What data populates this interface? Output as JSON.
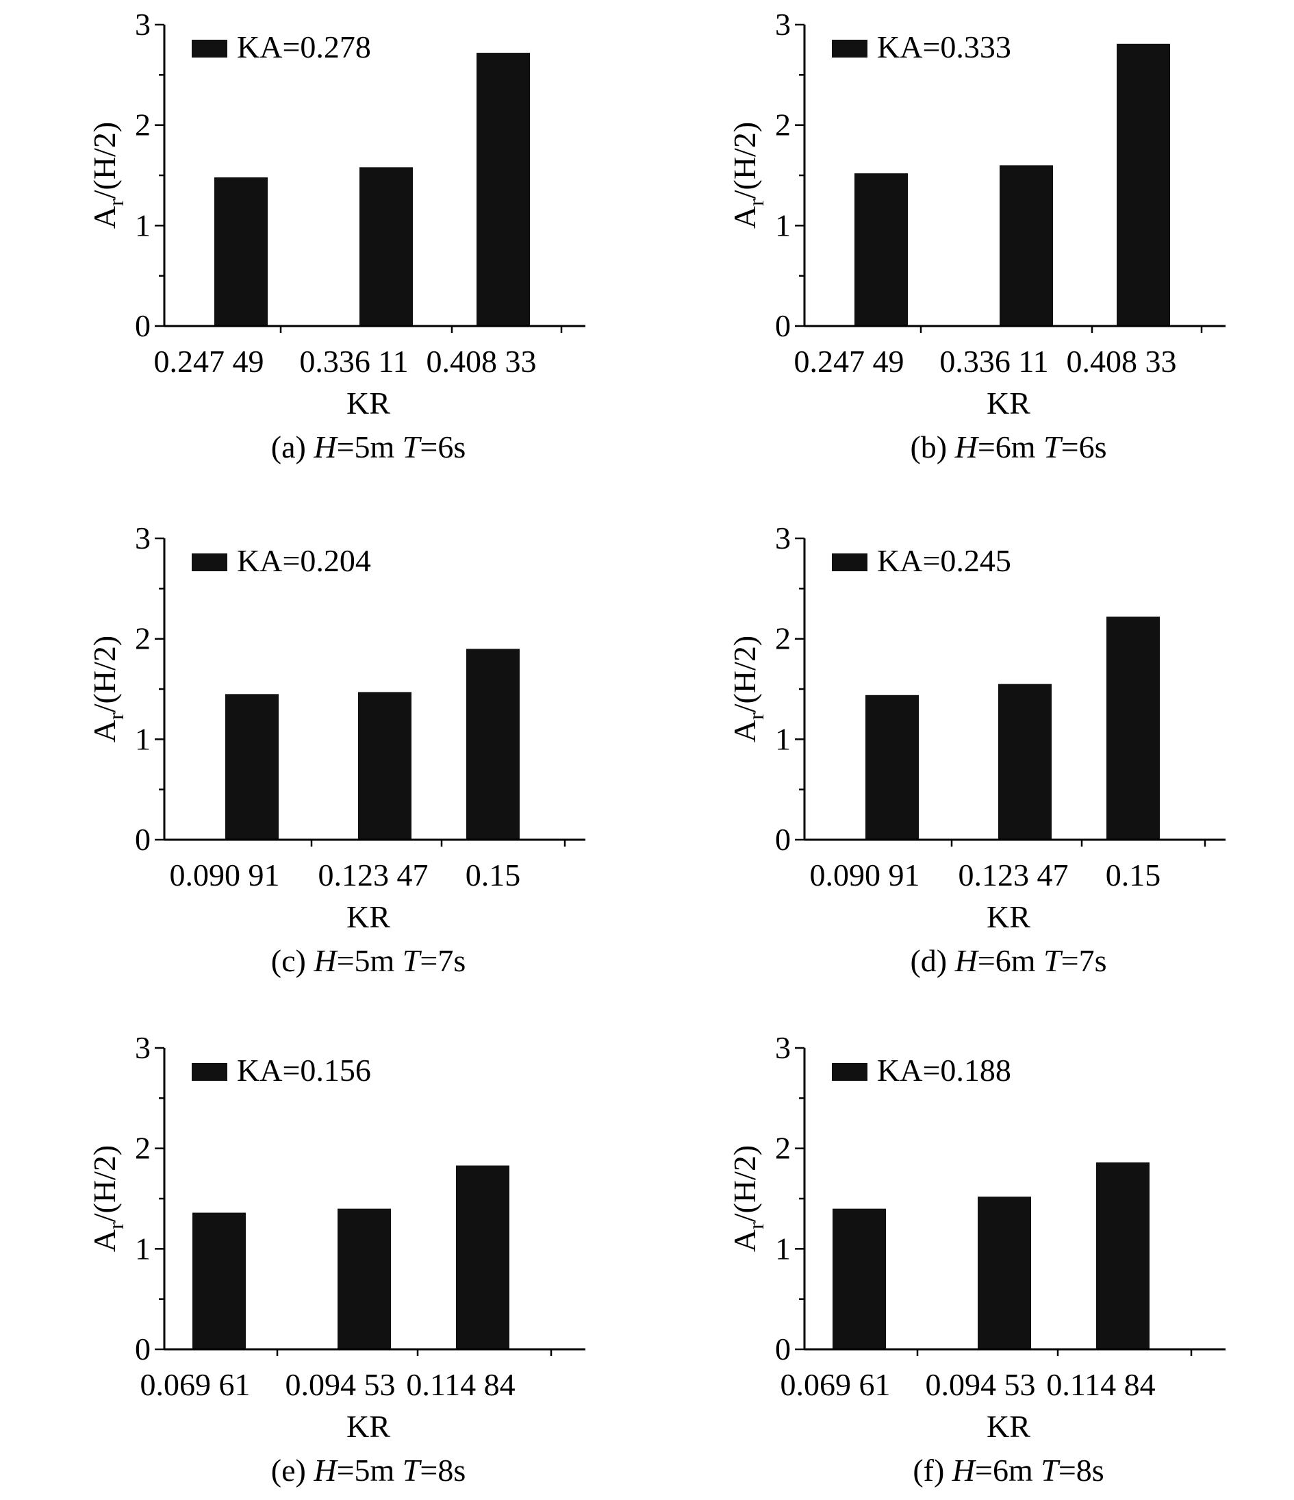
{
  "bar_color": "#111111",
  "axis_color": "#000000",
  "chart_data": [
    {
      "type": "bar",
      "panel": "a",
      "categories": [
        "0.247 49",
        "0.336 11",
        "0.408 33"
      ],
      "values": [
        1.48,
        1.58,
        2.72
      ],
      "legend": "KA=0.278",
      "legend_position": "top-left",
      "xlabel": "KR",
      "ylabel_main": "A",
      "ylabel_sub": "r",
      "ylabel_tail": "/(H/2)",
      "ylim": [
        0,
        3
      ],
      "yticks": [
        "0",
        "1",
        "2",
        "3"
      ],
      "caption": {
        "prefix": "(a) ",
        "h_var": "H",
        "h_val": "=5m ",
        "t_var": "T",
        "t_val": "=6s"
      }
    },
    {
      "type": "bar",
      "panel": "b",
      "categories": [
        "0.247 49",
        "0.336 11",
        "0.408 33"
      ],
      "values": [
        1.52,
        1.6,
        2.81
      ],
      "legend": "KA=0.333",
      "legend_position": "top-left",
      "xlabel": "KR",
      "ylabel_main": "A",
      "ylabel_sub": "r",
      "ylabel_tail": "/(H/2)",
      "ylim": [
        0,
        3
      ],
      "yticks": [
        "0",
        "1",
        "2",
        "3"
      ],
      "caption": {
        "prefix": "(b) ",
        "h_var": "H",
        "h_val": "=6m ",
        "t_var": "T",
        "t_val": "=6s"
      }
    },
    {
      "type": "bar",
      "panel": "c",
      "categories": [
        "0.090 91",
        "0.123 47",
        "0.15"
      ],
      "values": [
        1.45,
        1.47,
        1.9
      ],
      "legend": "KA=0.204",
      "legend_position": "top-left",
      "xlabel": "KR",
      "ylabel_main": "A",
      "ylabel_sub": "r",
      "ylabel_tail": "/(H/2)",
      "ylim": [
        0,
        3
      ],
      "yticks": [
        "0",
        "1",
        "2",
        "3"
      ],
      "caption": {
        "prefix": "(c) ",
        "h_var": "H",
        "h_val": "=5m ",
        "t_var": "T",
        "t_val": "=7s"
      }
    },
    {
      "type": "bar",
      "panel": "d",
      "categories": [
        "0.090 91",
        "0.123 47",
        "0.15"
      ],
      "values": [
        1.44,
        1.55,
        2.22
      ],
      "legend": "KA=0.245",
      "legend_position": "top-left",
      "xlabel": "KR",
      "ylabel_main": "A",
      "ylabel_sub": "r",
      "ylabel_tail": "/(H/2)",
      "ylim": [
        0,
        3
      ],
      "yticks": [
        "0",
        "1",
        "2",
        "3"
      ],
      "caption": {
        "prefix": "(d) ",
        "h_var": "H",
        "h_val": "=6m ",
        "t_var": "T",
        "t_val": "=7s"
      }
    },
    {
      "type": "bar",
      "panel": "e",
      "categories": [
        "0.069 61",
        "0.094 53",
        "0.114 84"
      ],
      "values": [
        1.36,
        1.4,
        1.83
      ],
      "legend": "KA=0.156",
      "legend_position": "top-left",
      "xlabel": "KR",
      "ylabel_main": "A",
      "ylabel_sub": "r",
      "ylabel_tail": "/(H/2)",
      "ylim": [
        0,
        3
      ],
      "yticks": [
        "0",
        "1",
        "2",
        "3"
      ],
      "caption": {
        "prefix": "(e) ",
        "h_var": "H",
        "h_val": "=5m ",
        "t_var": "T",
        "t_val": "=8s"
      }
    },
    {
      "type": "bar",
      "panel": "f",
      "categories": [
        "0.069 61",
        "0.094 53",
        "0.114 84"
      ],
      "values": [
        1.4,
        1.52,
        1.86
      ],
      "legend": "KA=0.188",
      "legend_position": "top-left",
      "xlabel": "KR",
      "ylabel_main": "A",
      "ylabel_sub": "r",
      "ylabel_tail": "/(H/2)",
      "ylim": [
        0,
        3
      ],
      "yticks": [
        "0",
        "1",
        "2",
        "3"
      ],
      "caption": {
        "prefix": "(f) ",
        "h_var": "H",
        "h_val": "=6m ",
        "t_var": "T",
        "t_val": "=8s"
      }
    }
  ]
}
